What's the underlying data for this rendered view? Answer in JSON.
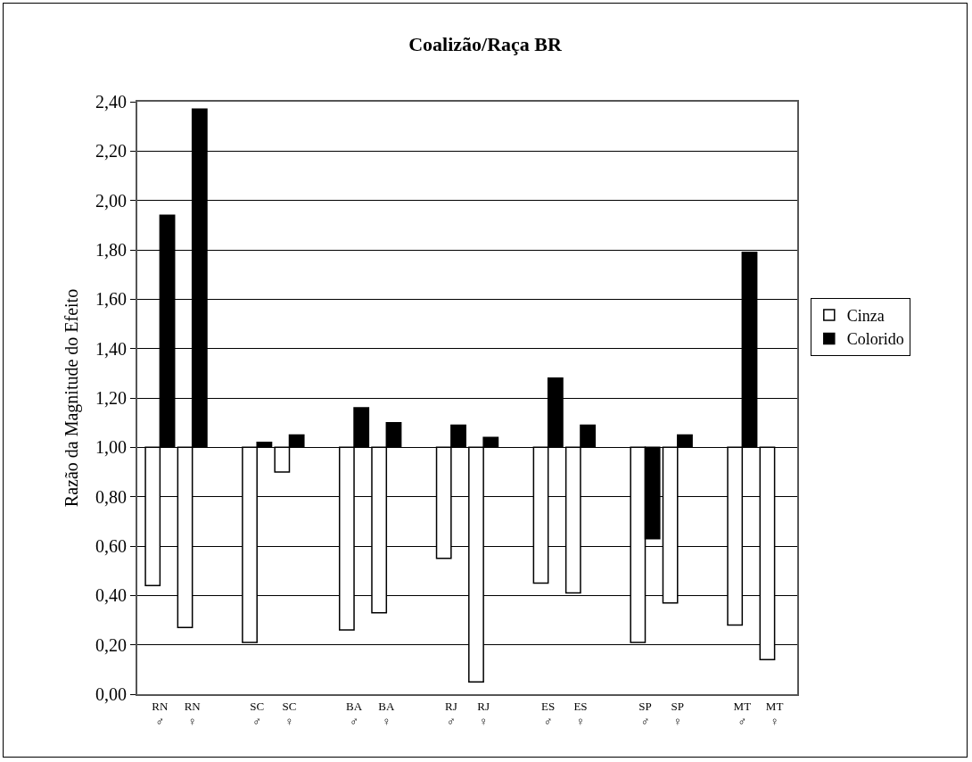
{
  "chart_data": {
    "type": "bar",
    "title": "Coalizão/Raça BR",
    "ylabel": "Razão da Magnitude do Efeito",
    "categories": [
      "RN\n♂",
      "RN\n♀",
      null,
      "SC\n♂",
      "SC\n♀",
      null,
      "BA\n♂",
      "BA\n♀",
      null,
      "RJ\n♂",
      "RJ\n♀",
      null,
      "ES\n♂",
      "ES\n♀",
      null,
      "SP\n♂",
      "SP\n♀",
      null,
      "MT\n♂",
      "MT\n♀"
    ],
    "series": [
      {
        "name": "Cinza",
        "color": "#ffffff",
        "base": [
          1,
          1,
          null,
          1,
          1,
          null,
          1,
          1,
          null,
          1,
          1,
          null,
          1,
          1,
          null,
          1,
          1,
          null,
          1,
          1
        ],
        "values": [
          -0.56,
          -0.73,
          null,
          -0.79,
          -0.1,
          null,
          -0.74,
          -0.67,
          null,
          -0.45,
          -0.95,
          null,
          -0.55,
          -0.59,
          null,
          -0.79,
          -0.63,
          null,
          -0.72,
          -0.86
        ]
      },
      {
        "name": "Colorido",
        "color": "#000000",
        "base": [
          1,
          1,
          null,
          1,
          1,
          null,
          1,
          1,
          null,
          1,
          1,
          null,
          1,
          1,
          null,
          1,
          1,
          null,
          1,
          null
        ],
        "values": [
          0.94,
          1.37,
          null,
          0.02,
          0.05,
          null,
          0.16,
          0.1,
          null,
          0.09,
          0.04,
          null,
          0.28,
          0.09,
          null,
          -0.37,
          0.05,
          null,
          0.79,
          null
        ]
      }
    ],
    "ylim": [
      0,
      2.4
    ],
    "yticks": [
      {
        "value": 0,
        "label": "0,00"
      },
      {
        "value": 0.2,
        "label": "0,20"
      },
      {
        "value": 0.4,
        "label": "0,40"
      },
      {
        "value": 0.6,
        "label": "0,60"
      },
      {
        "value": 0.8,
        "label": "0,80"
      },
      {
        "value": 1,
        "label": "1,00"
      },
      {
        "value": 1.2,
        "label": "1,20"
      },
      {
        "value": 1.4,
        "label": "1,40"
      },
      {
        "value": 1.6,
        "label": "1,60"
      },
      {
        "value": 1.8,
        "label": "1,80"
      },
      {
        "value": 2,
        "label": "2,00"
      },
      {
        "value": 2.2,
        "label": "2,20"
      },
      {
        "value": 2.4,
        "label": "2,40"
      }
    ],
    "grid": "y",
    "legend": "right"
  }
}
